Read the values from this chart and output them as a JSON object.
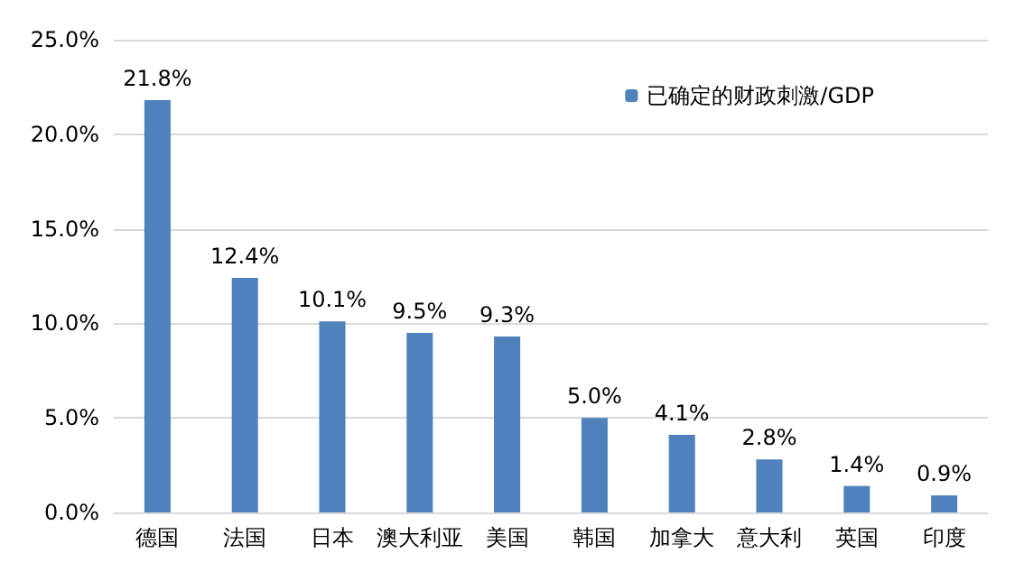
{
  "chart_data": {
    "type": "bar",
    "categories": [
      "德国",
      "法国",
      "日本",
      "澳大利亚",
      "美国",
      "韩国",
      "加拿大",
      "意大利",
      "英国",
      "印度"
    ],
    "series": [
      {
        "name": "已确定的财政刺激/GDP",
        "color": "#4f81bd",
        "values": [
          21.8,
          12.4,
          10.1,
          9.5,
          9.3,
          5.0,
          4.1,
          2.8,
          1.4,
          0.9
        ],
        "value_labels": [
          "21.8%",
          "12.4%",
          "10.1%",
          "9.5%",
          "9.3%",
          "5.0%",
          "4.1%",
          "2.8%",
          "1.4%",
          "0.9%"
        ]
      }
    ],
    "ylim": [
      0,
      25
    ],
    "yticks": [
      {
        "value": 0,
        "label": "0.0%"
      },
      {
        "value": 5,
        "label": "5.0%"
      },
      {
        "value": 10,
        "label": "10.0%"
      },
      {
        "value": 15,
        "label": "15.0%"
      },
      {
        "value": 20,
        "label": "20.0%"
      },
      {
        "value": 25,
        "label": "25.0%"
      }
    ],
    "grid": "y",
    "legend": "top right"
  }
}
